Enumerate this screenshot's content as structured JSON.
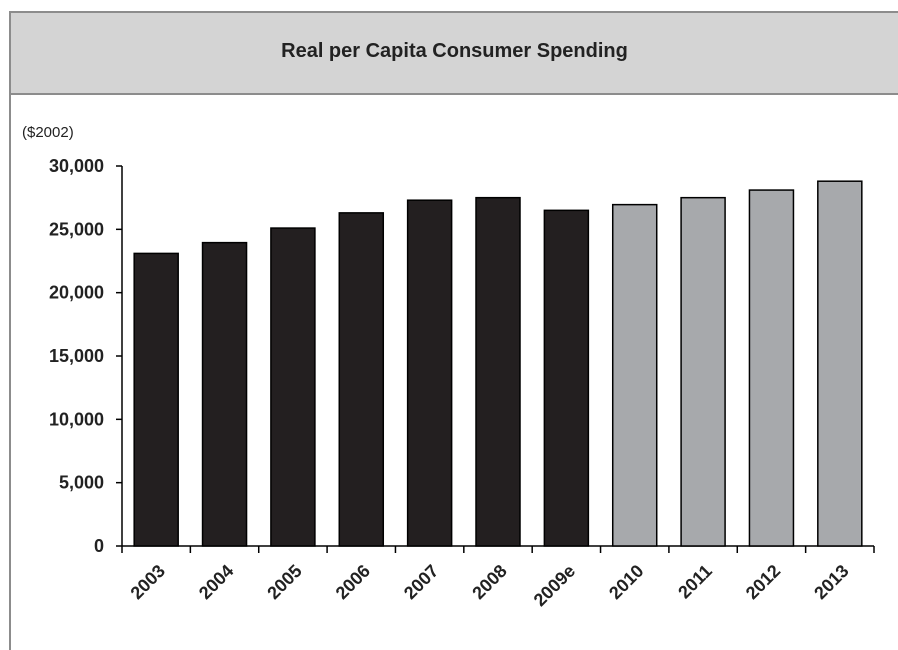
{
  "chart_data": {
    "type": "bar",
    "title": "Real per Capita Consumer Spending",
    "unit_label": "($2002)",
    "categories": [
      "2003",
      "2004",
      "2005",
      "2006",
      "2007",
      "2008",
      "2009e",
      "2010",
      "2011",
      "2012",
      "2013"
    ],
    "series": [
      {
        "values": [
          23100,
          23950,
          25100,
          26300,
          27300,
          27500,
          26500,
          26950,
          27500,
          28100,
          28800
        ],
        "kinds": [
          "actual",
          "actual",
          "actual",
          "actual",
          "actual",
          "actual",
          "actual",
          "forecast",
          "forecast",
          "forecast",
          "forecast"
        ]
      }
    ],
    "yticks": [
      "0",
      "5,000",
      "10,000",
      "15,000",
      "20,000",
      "25,000",
      "30,000"
    ],
    "ylim": [
      0,
      30000
    ],
    "xlabel": "",
    "ylabel": "",
    "grid": false,
    "colors": {
      "actual": "#231f20",
      "forecast": "#a7a9ac",
      "outline": "#000000"
    }
  }
}
